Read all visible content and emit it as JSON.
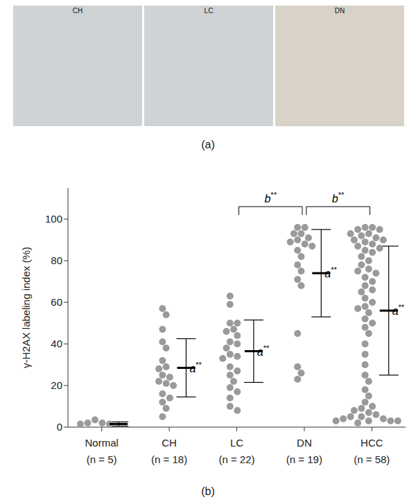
{
  "panel_a": {
    "label": "(a)",
    "images": [
      "CH",
      "LC",
      "DN"
    ]
  },
  "chart_data": {
    "type": "scatter",
    "panel_label": "(b)",
    "y_label": "γ-H2AX labeling index (%)",
    "ylim": [
      0,
      115
    ],
    "yticks": [
      0,
      20,
      40,
      60,
      80,
      100
    ],
    "color": "#9a9a9a",
    "categories": [
      "Normal",
      "CH",
      "LC",
      "DN",
      "HCC"
    ],
    "n_labels": [
      "(n = 5)",
      "(n = 18)",
      "(n = 22)",
      "(n = 19)",
      "(n = 58)"
    ],
    "groups": [
      {
        "values": [
          1.5,
          2,
          3.5,
          2,
          1.5
        ],
        "mean": 1.5,
        "sd": 1
      },
      {
        "values": [
          57,
          54,
          47,
          41,
          38,
          32,
          29,
          28,
          25,
          24,
          22,
          21,
          20,
          16,
          14,
          12,
          9,
          5
        ],
        "mean": 28.5,
        "sd": 14,
        "annotation": "a**"
      },
      {
        "values": [
          63,
          59,
          50,
          50,
          47,
          46,
          44,
          41,
          40,
          38,
          35,
          34,
          33,
          29,
          27,
          25,
          22,
          19,
          17,
          14,
          10,
          8
        ],
        "mean": 36.5,
        "sd": 15,
        "annotation": "a**"
      },
      {
        "values": [
          96,
          96,
          93,
          93,
          91,
          90,
          89,
          88,
          87,
          85,
          82,
          78,
          75,
          71,
          68,
          45,
          29,
          26,
          23
        ],
        "mean": 74,
        "sd": 21,
        "annotation": "a**"
      },
      {
        "values": [
          96,
          96,
          95,
          95,
          93,
          93,
          92,
          91,
          90,
          90,
          89,
          88,
          87,
          86,
          85,
          84,
          82,
          80,
          78,
          76,
          75,
          74,
          72,
          70,
          68,
          66,
          65,
          62,
          60,
          58,
          57,
          55,
          52,
          50,
          48,
          45,
          40,
          35,
          30,
          25,
          22,
          18,
          15,
          12,
          10,
          9,
          8,
          7,
          6,
          5,
          5,
          4,
          4,
          3,
          3,
          3,
          3,
          2
        ],
        "mean": 56,
        "sd": 31,
        "annotation": "a**"
      }
    ],
    "brackets": [
      {
        "from": "LC",
        "to": "DN",
        "label": "b**"
      },
      {
        "from": "DN",
        "to": "HCC",
        "label": "b**"
      }
    ]
  }
}
